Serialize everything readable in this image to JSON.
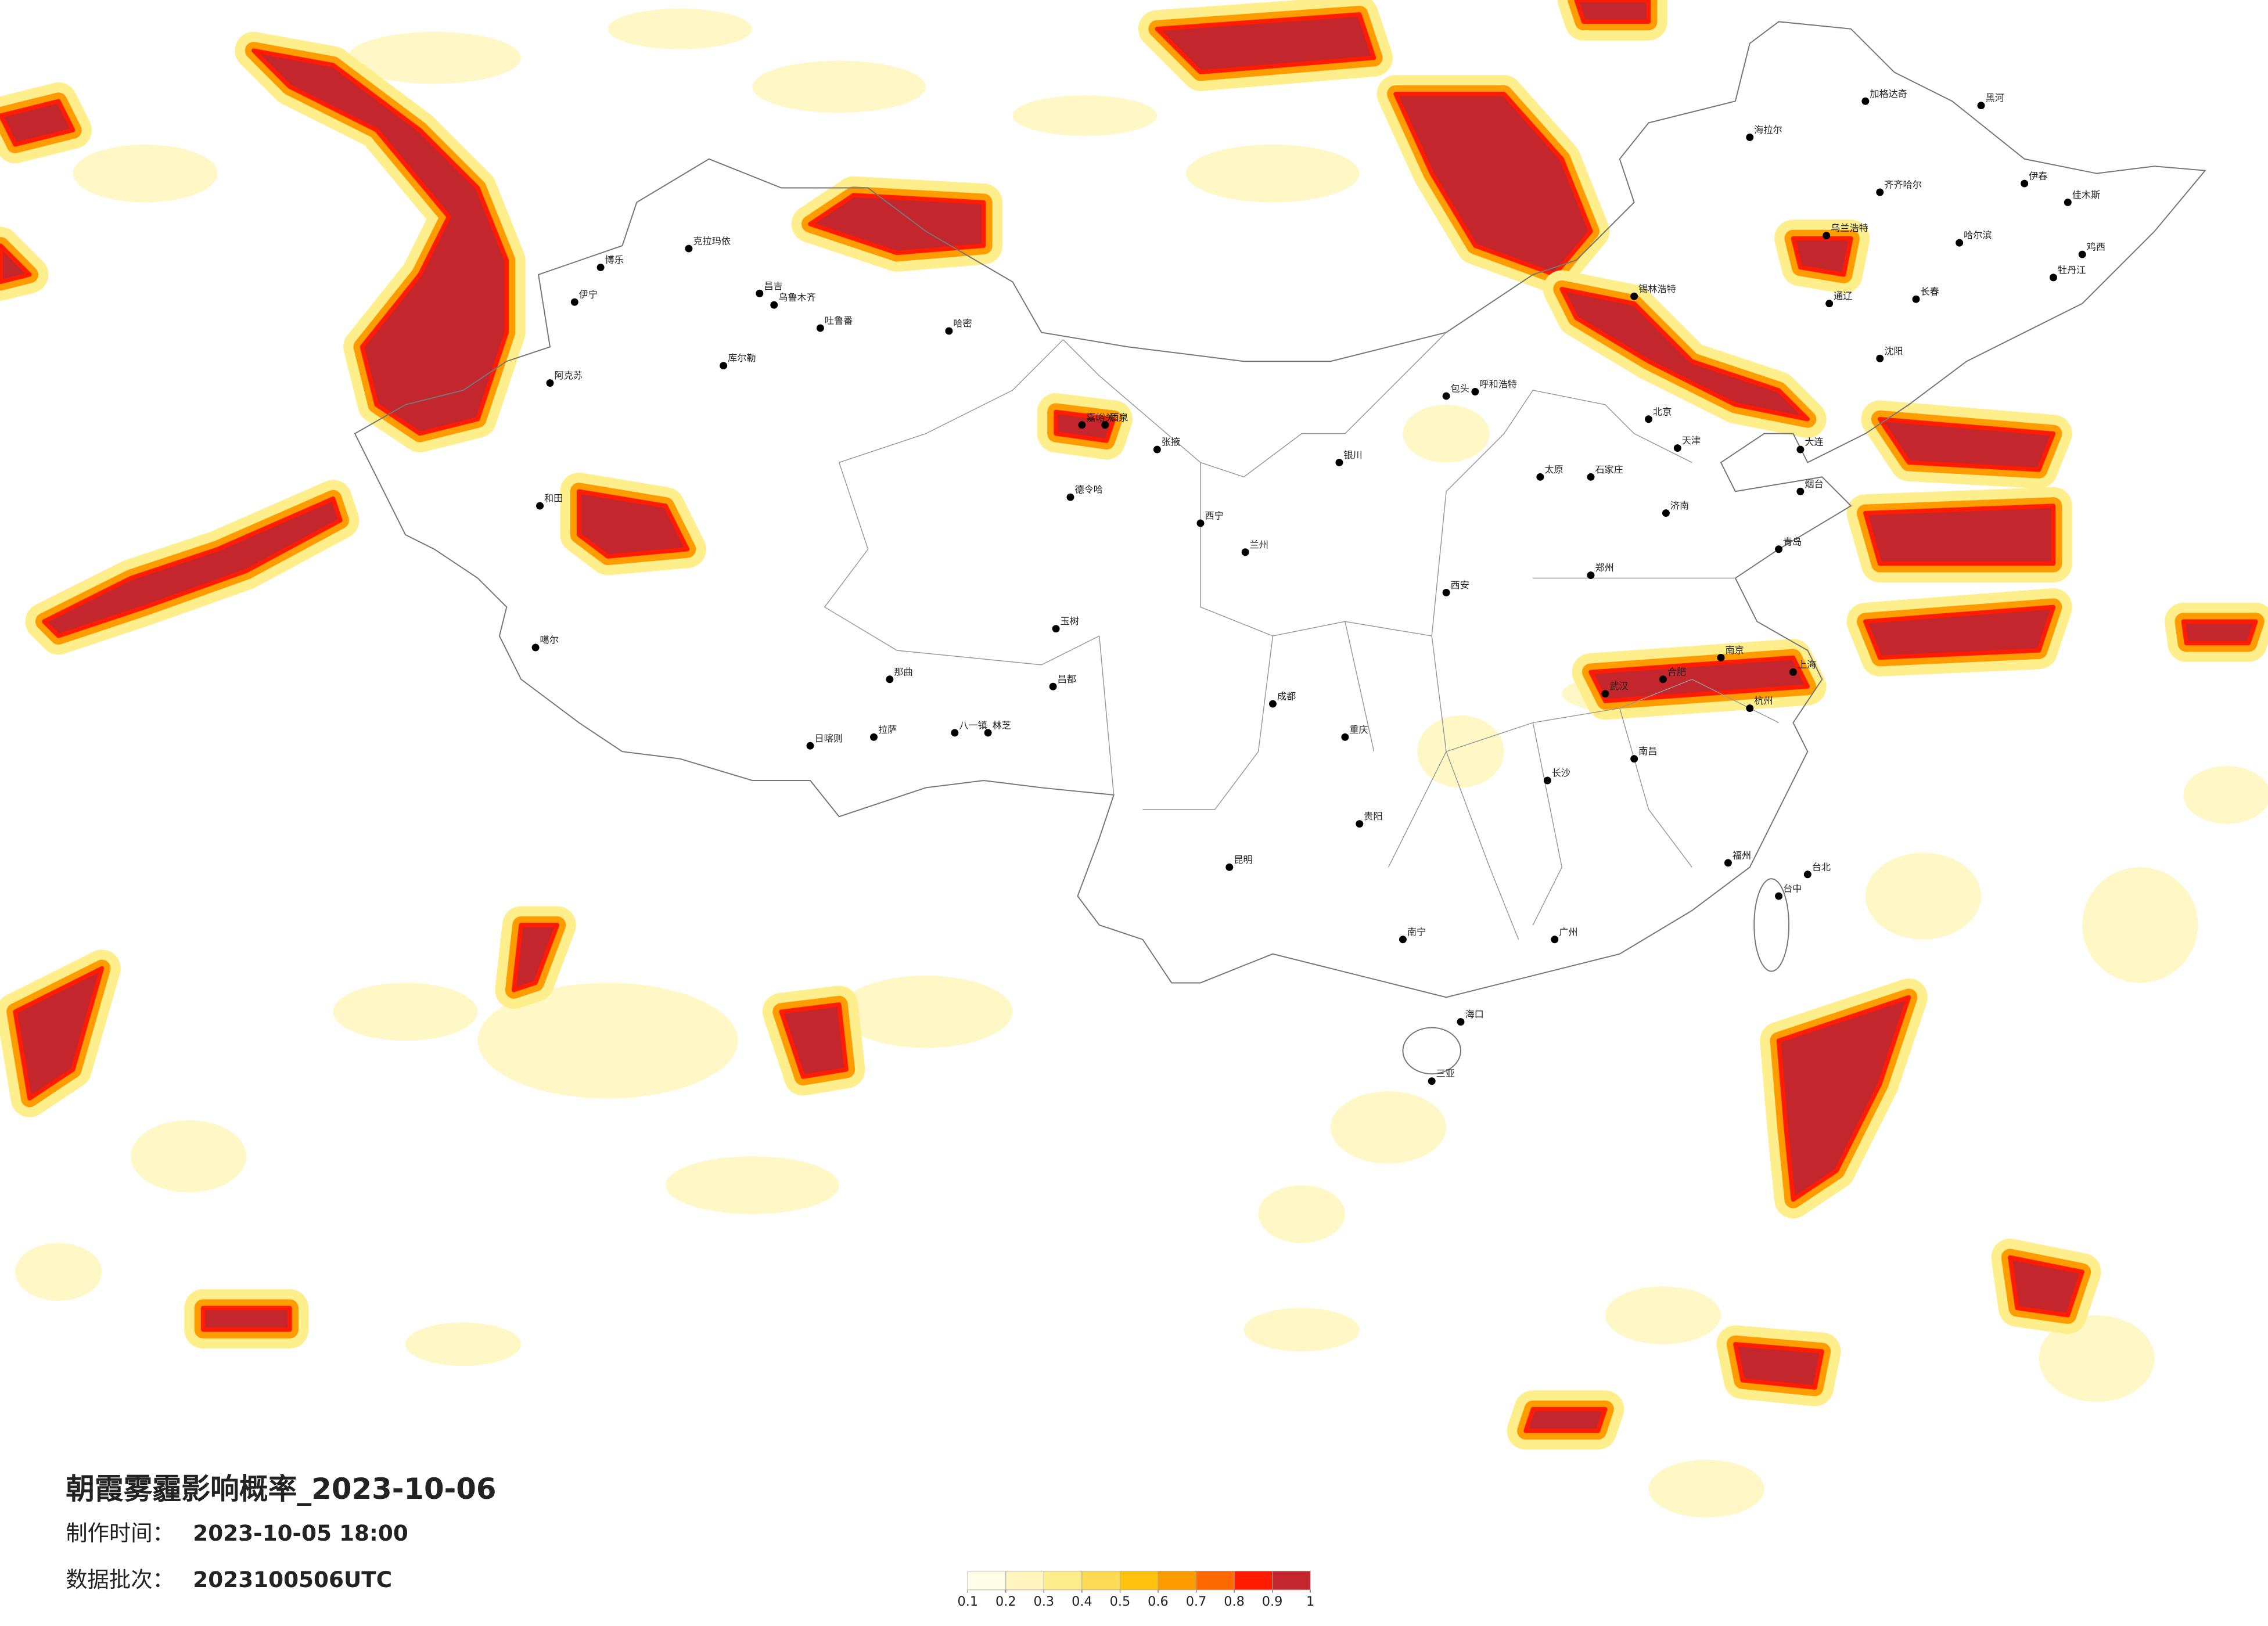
{
  "title": "朝霞雾霾影响概率_2023-10-06",
  "made_time": {
    "label": "制作时间：",
    "value": "2023-10-05 18:00"
  },
  "batch": {
    "label": "数据批次：",
    "value": "2023100506UTC"
  },
  "legend": {
    "ticks": [
      0.1,
      0.2,
      0.3,
      0.4,
      0.5,
      0.6,
      0.7,
      0.8,
      0.9,
      1
    ],
    "colors": [
      "#fffce8",
      "#fff6bf",
      "#ffee8c",
      "#ffdb55",
      "#ffc20e",
      "#ff9c00",
      "#ff6a00",
      "#ff1c00",
      "#c4262e"
    ]
  },
  "cities": [
    "克拉玛依",
    "昌吉",
    "乌鲁木齐",
    "吐鲁番",
    "哈密",
    "伊宁",
    "博乐",
    "库尔勒",
    "阿克苏",
    "和田",
    "噶尔",
    "那曲",
    "拉萨",
    "日喀则",
    "八一镇",
    "林芝",
    "玉树",
    "昌都",
    "德令哈",
    "嘉峪关",
    "酒泉",
    "张掖",
    "西宁",
    "兰州",
    "银川",
    "呼和浩特",
    "包头",
    "太原",
    "北京",
    "天津",
    "石家庄",
    "济南",
    "郑州",
    "西安",
    "成都",
    "重庆",
    "贵阳",
    "昆明",
    "南宁",
    "广州",
    "长沙",
    "武汉",
    "南昌",
    "福州",
    "杭州",
    "上海",
    "南京",
    "合肥",
    "台中",
    "海口",
    "三亚",
    "哈尔滨",
    "长春",
    "沈阳",
    "大连",
    "齐齐哈尔",
    "海拉尔",
    "加格达奇",
    "黑河",
    "伊春",
    "佳木斯",
    "鸡西",
    "牡丹江",
    "乌兰浩特",
    "通辽",
    "锡林浩特",
    "烟台",
    "青岛",
    "台北"
  ]
}
